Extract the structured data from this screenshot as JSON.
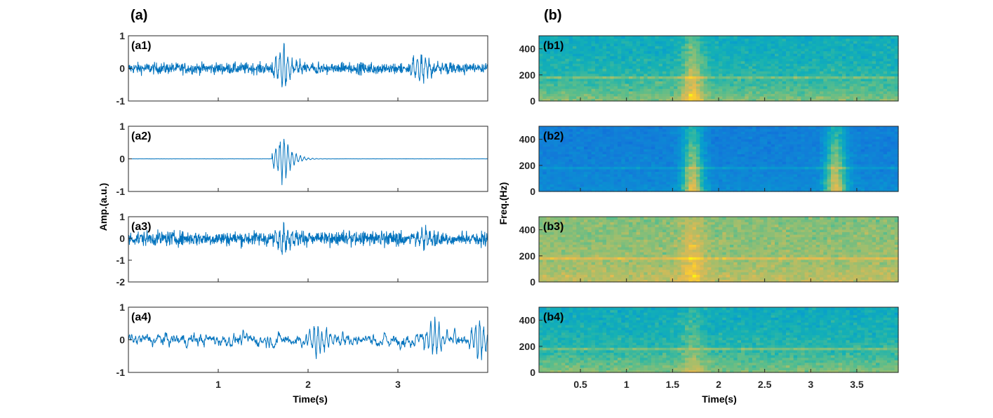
{
  "figure": {
    "panel_a_title": "(a)",
    "panel_b_title": "(b)"
  },
  "chart_data": [
    {
      "type": "line",
      "panel": "a",
      "series_color": "#0072BD",
      "xlabel": "Time(s)",
      "ylabel": "Amp.(a.u.)",
      "xlim": [
        0,
        4
      ],
      "xticks": [
        1,
        2,
        3
      ],
      "xtick_labels": [
        "1",
        "2",
        "3"
      ],
      "subplots": [
        {
          "label": "(a1)",
          "ylim": [
            -1,
            1
          ],
          "yticks": [
            -1,
            0,
            1
          ],
          "ytick_labels": [
            "-1",
            "0",
            "1"
          ],
          "description": "noisy signal with burst near 1.7 s",
          "events": [
            {
              "t": 1.72,
              "amp": 0.95
            },
            {
              "t": 3.25,
              "amp": 0.6
            }
          ],
          "noise_amp": 0.18
        },
        {
          "label": "(a2)",
          "ylim": [
            -1,
            1
          ],
          "yticks": [
            -1,
            0,
            1
          ],
          "ytick_labels": [
            "-1",
            "0",
            "1"
          ],
          "description": "clean transient near 1.7 s",
          "events": [
            {
              "t": 1.72,
              "amp": 1.0
            }
          ],
          "noise_amp": 0.003
        },
        {
          "label": "(a3)",
          "ylim": [
            -2,
            1
          ],
          "yticks": [
            -2,
            -1,
            0,
            1
          ],
          "ytick_labels": [
            "-2",
            "-1",
            "0",
            "1"
          ],
          "description": "heavy noise over whole window",
          "events": [
            {
              "t": 1.72,
              "amp": 0.9
            },
            {
              "t": 3.3,
              "amp": 0.7
            }
          ],
          "noise_amp": 0.35
        },
        {
          "label": "(a4)",
          "ylim": [
            -1,
            1
          ],
          "yticks": [
            -1,
            0,
            1
          ],
          "ytick_labels": [
            "-1",
            "0",
            "1"
          ],
          "description": "low-frequency oscillations",
          "events": [
            {
              "t": 2.1,
              "amp": 0.7
            },
            {
              "t": 3.4,
              "amp": 0.85
            },
            {
              "t": 3.9,
              "amp": 0.9
            }
          ],
          "noise_amp": 0.25
        }
      ]
    },
    {
      "type": "heatmap",
      "panel": "b",
      "colormap": "parula",
      "xlabel": "Time(s)",
      "ylabel": "Freq.(Hz)",
      "xlim": [
        0.05,
        3.95
      ],
      "xticks": [
        0.5,
        1,
        1.5,
        2,
        2.5,
        3,
        3.5
      ],
      "xtick_labels": [
        "0.5",
        "1",
        "1.5",
        "2",
        "2.5",
        "3",
        "3.5"
      ],
      "ylim": [
        0,
        500
      ],
      "yticks": [
        0,
        200,
        400
      ],
      "ytick_labels": [
        "0",
        "200",
        "400"
      ],
      "subplots": [
        {
          "label": "(b1)",
          "base_low": 0.72,
          "base_high": 0.5,
          "hot_times": [
            1.72
          ],
          "hot_strength": 0.25
        },
        {
          "label": "(b2)",
          "base_low": 0.38,
          "base_high": 0.3,
          "hot_times": [
            1.72,
            3.27
          ],
          "hot_strength": 0.5
        },
        {
          "label": "(b3)",
          "base_low": 0.8,
          "base_high": 0.7,
          "hot_times": [
            1.72
          ],
          "hot_strength": 0.15
        },
        {
          "label": "(b4)",
          "base_low": 0.72,
          "base_high": 0.5,
          "hot_times": [
            1.72
          ],
          "hot_strength": 0.12
        }
      ]
    }
  ]
}
